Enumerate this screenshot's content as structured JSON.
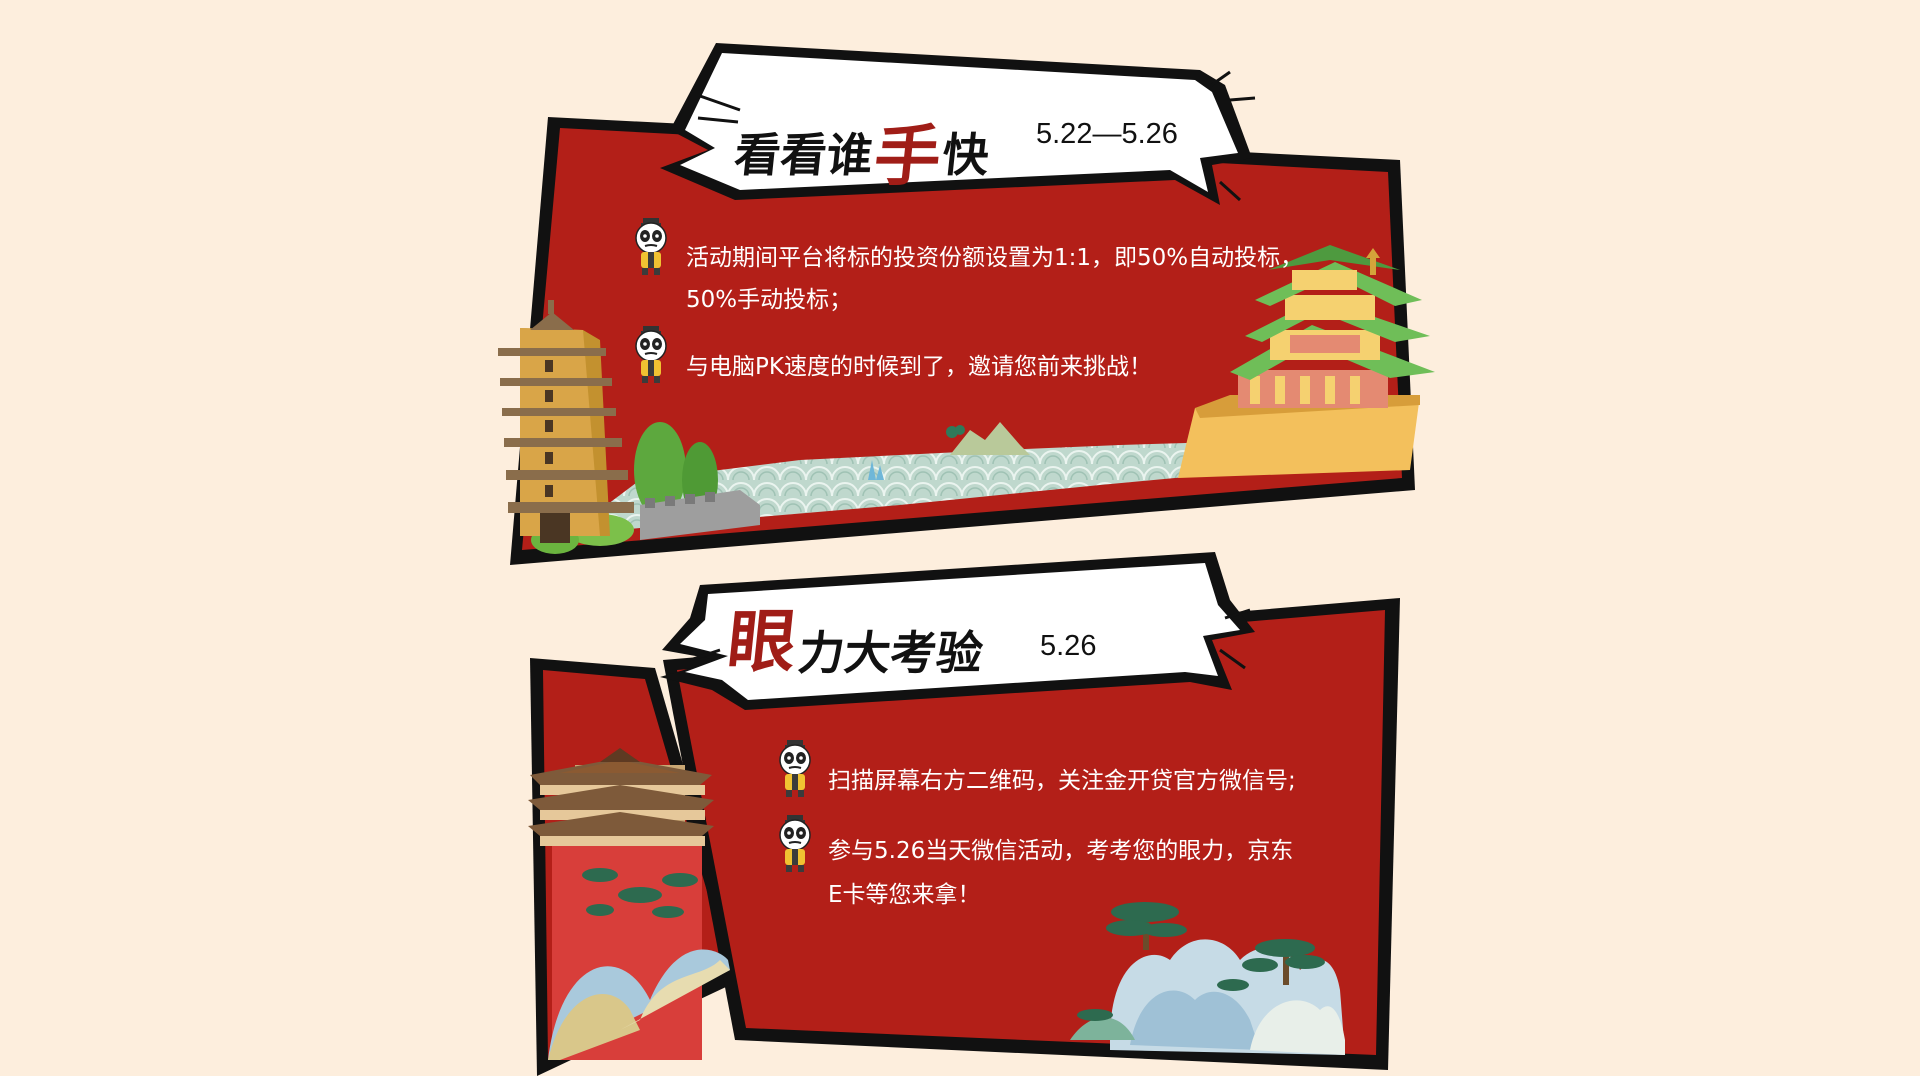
{
  "section1": {
    "title_chars": [
      "看",
      "看",
      "谁",
      "手",
      "快"
    ],
    "date": "5.22—5.26",
    "bullets": [
      {
        "lines": [
          "活动期间平台将标的投资份额设置为1:1，即50%自动投标，",
          "50%手动投标；"
        ]
      },
      {
        "lines": [
          "与电脑PK速度的时候到了，邀请您前来挑战！"
        ]
      }
    ]
  },
  "section2": {
    "title_chars": [
      "眼",
      "力",
      "大",
      "考",
      "验"
    ],
    "date": "5.26",
    "bullets": [
      {
        "lines": [
          "扫描屏幕右方二维码，关注金开贷官方微信号;"
        ]
      },
      {
        "lines": [
          "参与5.26当天微信活动，考考您的眼力，京东",
          "E卡等您来拿！"
        ]
      }
    ]
  },
  "colors": {
    "background": "#fdeedd",
    "panel_red": "#b31f18",
    "outline": "#111111",
    "accent_title_red": "#a01d17"
  },
  "icons": [
    "panda-mascot-icon",
    "pagoda-icon",
    "temple-pavilion-icon",
    "pine-tree-icon",
    "mountain-icon",
    "wave-pattern-icon",
    "palace-tower-icon"
  ]
}
